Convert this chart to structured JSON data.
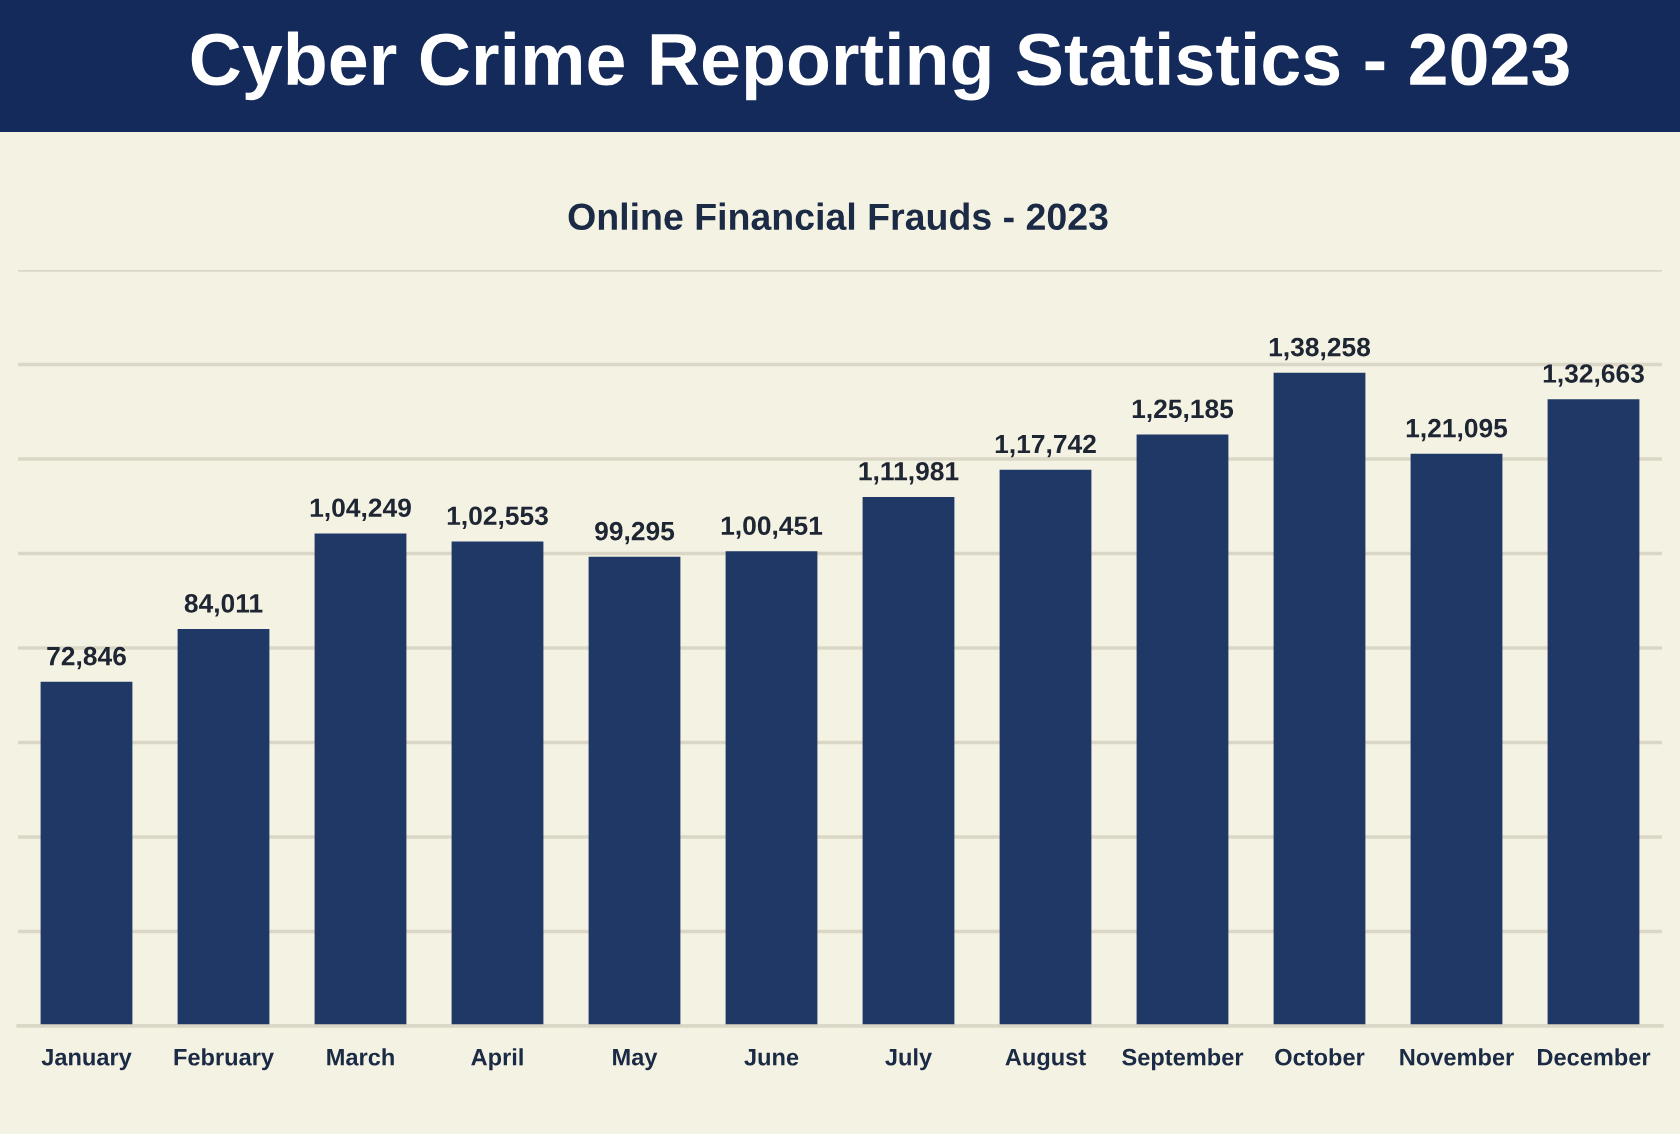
{
  "chart_data": {
    "type": "bar",
    "title": "Cyber Crime Reporting Statistics - 2023",
    "subtitle": "Online Financial Frauds - 2023",
    "categories": [
      "January",
      "February",
      "March",
      "April",
      "May",
      "June",
      "July",
      "August",
      "September",
      "October",
      "November",
      "December"
    ],
    "values": [
      72846,
      84011,
      104249,
      102553,
      99295,
      100451,
      111981,
      117742,
      125185,
      138258,
      121095,
      132663
    ],
    "value_labels": [
      "72,846",
      "84,011",
      "1,04,249",
      "1,02,553",
      "99,295",
      "1,00,451",
      "1,11,981",
      "1,17,742",
      "1,25,185",
      "1,38,258",
      "1,21,095",
      "1,32,663"
    ],
    "color": "#1f3866",
    "ylim": [
      0,
      160000
    ],
    "yticks": [
      {
        "value": 0,
        "label": null
      },
      {
        "value": 20000,
        "label": null
      },
      {
        "value": 40000,
        "label": null
      },
      {
        "value": 60000,
        "label": null
      },
      {
        "value": 80000,
        "label": null
      },
      {
        "value": 100000,
        "label": null
      },
      {
        "value": 120000,
        "label": null
      },
      {
        "value": 140000,
        "label": null
      },
      {
        "value": 160000,
        "label": null
      }
    ],
    "grid": "y",
    "tick_labels": "x"
  }
}
